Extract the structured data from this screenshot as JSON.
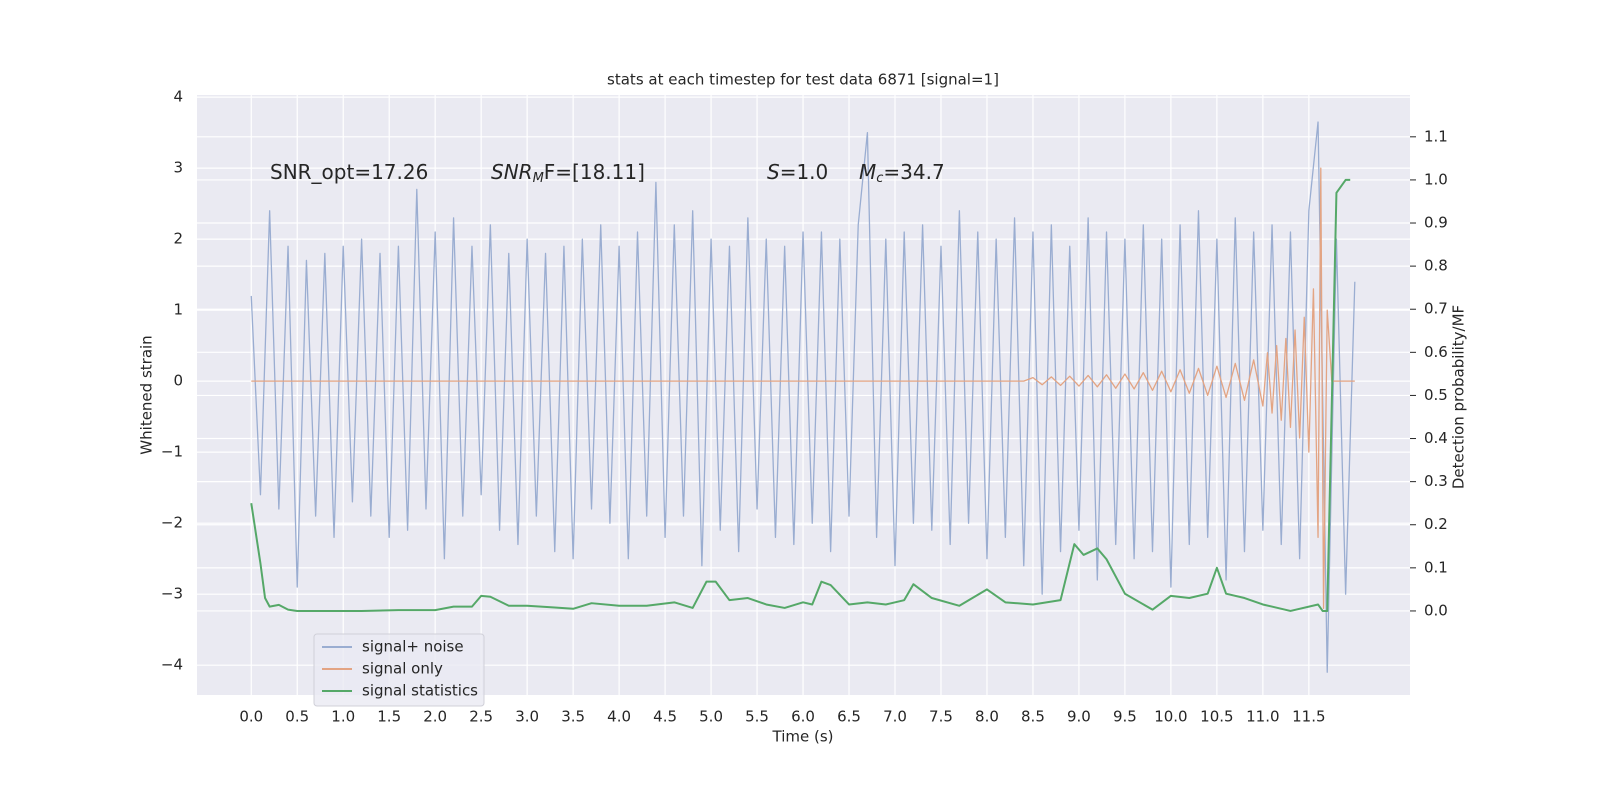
{
  "chart_data": {
    "type": "line",
    "title": "stats at each timestep for test data 6871 [signal=1]",
    "xlabel": "Time (s)",
    "ylabel": "Whitened strain",
    "y2label": "Detection probability/MF",
    "annotations": [
      {
        "text": "SNR_opt=17.26"
      },
      {
        "italic": "SNR",
        "sub": "M",
        "rest": "F=[18.11]"
      },
      {
        "italic": "S",
        "rest": "=1.0"
      },
      {
        "italic": "M",
        "sub": "c",
        "rest": "=34.7"
      }
    ],
    "xlim": [
      -0.59,
      12.6
    ],
    "ylim": [
      -4.42,
      4.03
    ],
    "y2lim": [
      -0.195,
      1.197
    ],
    "xticks": [
      {
        "value": 0,
        "label": "0.0"
      },
      {
        "value": 0.5,
        "label": "0.5"
      },
      {
        "value": 1,
        "label": "1.0"
      },
      {
        "value": 1.5,
        "label": "1.5"
      },
      {
        "value": 2,
        "label": "2.0"
      },
      {
        "value": 2.5,
        "label": "2.5"
      },
      {
        "value": 3,
        "label": "3.0"
      },
      {
        "value": 3.5,
        "label": "3.5"
      },
      {
        "value": 4,
        "label": "4.0"
      },
      {
        "value": 4.5,
        "label": "4.5"
      },
      {
        "value": 5,
        "label": "5.0"
      },
      {
        "value": 5.5,
        "label": "5.5"
      },
      {
        "value": 6,
        "label": "6.0"
      },
      {
        "value": 6.5,
        "label": "6.5"
      },
      {
        "value": 7,
        "label": "7.0"
      },
      {
        "value": 7.5,
        "label": "7.5"
      },
      {
        "value": 8,
        "label": "8.0"
      },
      {
        "value": 8.5,
        "label": "8.5"
      },
      {
        "value": 9,
        "label": "9.0"
      },
      {
        "value": 9.5,
        "label": "9.5"
      },
      {
        "value": 10,
        "label": "10.0"
      },
      {
        "value": 10.5,
        "label": "10.5"
      },
      {
        "value": 11,
        "label": "11.0"
      },
      {
        "value": 11.5,
        "label": "11.5"
      }
    ],
    "yticks": [
      {
        "value": -4,
        "label": "−4"
      },
      {
        "value": -3,
        "label": "−3"
      },
      {
        "value": -2,
        "label": "−2"
      },
      {
        "value": -1,
        "label": "−1"
      },
      0,
      1,
      2,
      3,
      4
    ],
    "y2ticks": [
      {
        "value": 0,
        "label": "0.0"
      },
      {
        "value": 0.1,
        "label": "0.1"
      },
      {
        "value": 0.2,
        "label": "0.2"
      },
      {
        "value": 0.3,
        "label": "0.3"
      },
      {
        "value": 0.4,
        "label": "0.4"
      },
      {
        "value": 0.5,
        "label": "0.5"
      },
      {
        "value": 0.6,
        "label": "0.6"
      },
      {
        "value": 0.7,
        "label": "0.7"
      },
      {
        "value": 0.8,
        "label": "0.8"
      },
      {
        "value": 0.9,
        "label": "0.9"
      },
      {
        "value": 1,
        "label": "1.0"
      },
      {
        "value": 1.1,
        "label": "1.1"
      }
    ],
    "grid": true,
    "legend": "lower left",
    "series": [
      {
        "name": "signal+ noise",
        "color": "#9aadd1",
        "x": [
          0,
          0.1,
          0.2,
          0.3,
          0.4,
          0.5,
          0.6,
          0.7,
          0.8,
          0.9,
          1,
          1.1,
          1.2,
          1.3,
          1.4,
          1.5,
          1.6,
          1.7,
          1.8,
          1.9,
          2,
          2.1,
          2.2,
          2.3,
          2.4,
          2.5,
          2.6,
          2.7,
          2.8,
          2.9,
          3,
          3.1,
          3.2,
          3.3,
          3.4,
          3.5,
          3.6,
          3.7,
          3.8,
          3.9,
          4,
          4.1,
          4.2,
          4.3,
          4.4,
          4.5,
          4.6,
          4.7,
          4.8,
          4.9,
          5,
          5.1,
          5.2,
          5.3,
          5.4,
          5.5,
          5.6,
          5.7,
          5.8,
          5.9,
          6,
          6.1,
          6.2,
          6.3,
          6.4,
          6.5,
          6.6,
          6.7,
          6.8,
          6.9,
          7,
          7.1,
          7.2,
          7.3,
          7.4,
          7.5,
          7.6,
          7.7,
          7.8,
          7.9,
          8,
          8.1,
          8.2,
          8.3,
          8.4,
          8.5,
          8.6,
          8.7,
          8.8,
          8.9,
          9,
          9.1,
          9.2,
          9.3,
          9.4,
          9.5,
          9.6,
          9.7,
          9.8,
          9.9,
          10,
          10.1,
          10.2,
          10.3,
          10.4,
          10.5,
          10.6,
          10.7,
          10.8,
          10.9,
          11,
          11.1,
          11.2,
          11.3,
          11.4,
          11.5,
          11.6,
          11.7,
          11.8,
          11.9,
          12
        ],
        "values": [
          1.2,
          -1.6,
          2.4,
          -1.8,
          1.9,
          -2.9,
          1.7,
          -1.9,
          1.8,
          -2.2,
          1.9,
          -1.7,
          2.0,
          -1.9,
          1.8,
          -2.2,
          1.9,
          -2.1,
          2.7,
          -1.8,
          2.1,
          -2.5,
          2.3,
          -1.9,
          1.9,
          -1.6,
          2.2,
          -2.1,
          1.8,
          -2.3,
          2.0,
          -1.9,
          1.8,
          -2.4,
          1.9,
          -2.5,
          2.0,
          -1.8,
          2.2,
          -2.0,
          1.9,
          -2.5,
          2.1,
          -1.9,
          2.8,
          -2.2,
          2.2,
          -1.9,
          2.4,
          -2.6,
          2.0,
          -2.1,
          1.9,
          -2.4,
          2.3,
          -1.8,
          2.0,
          -2.2,
          1.9,
          -2.3,
          2.1,
          -2.0,
          2.1,
          -2.4,
          2.0,
          -1.9,
          2.2,
          3.5,
          -2.2,
          2.0,
          -2.6,
          2.1,
          -2.0,
          2.2,
          -2.1,
          1.9,
          -2.3,
          2.4,
          -2.0,
          2.1,
          -2.5,
          2.0,
          -2.2,
          2.3,
          -2.6,
          2.1,
          -3.0,
          2.2,
          -2.4,
          1.9,
          -2.1,
          2.3,
          -2.8,
          2.1,
          -2.3,
          2.0,
          -2.5,
          2.2,
          -2.4,
          2.0,
          -2.9,
          2.2,
          -2.3,
          2.4,
          -2.2,
          2.0,
          -2.8,
          2.3,
          -2.4,
          2.1,
          -2.1,
          2.2,
          -2.3,
          2.1,
          -2.5,
          2.4,
          3.65,
          -4.1,
          2.0,
          -3.0,
          1.4
        ]
      },
      {
        "name": "signal only",
        "color": "#e3a483",
        "x": [
          0,
          8.4,
          8.5,
          8.6,
          8.7,
          8.8,
          8.9,
          9,
          9.1,
          9.2,
          9.3,
          9.4,
          9.5,
          9.6,
          9.7,
          9.8,
          9.9,
          10,
          10.1,
          10.2,
          10.3,
          10.4,
          10.5,
          10.6,
          10.7,
          10.8,
          10.9,
          11,
          11.05,
          11.1,
          11.15,
          11.2,
          11.25,
          11.3,
          11.35,
          11.4,
          11.45,
          11.5,
          11.55,
          11.6,
          11.63,
          11.66,
          11.7,
          11.75,
          12
        ],
        "values": [
          0,
          0,
          0.05,
          -0.05,
          0.06,
          -0.06,
          0.07,
          -0.07,
          0.08,
          -0.08,
          0.09,
          -0.1,
          0.1,
          -0.11,
          0.12,
          -0.13,
          0.14,
          -0.15,
          0.16,
          -0.17,
          0.18,
          -0.2,
          0.21,
          -0.23,
          0.25,
          -0.27,
          0.3,
          -0.35,
          0.4,
          -0.45,
          0.5,
          -0.55,
          0.6,
          -0.65,
          0.72,
          -0.8,
          0.9,
          -1.0,
          1.3,
          -2.2,
          3.0,
          -3.2,
          1.0,
          0,
          0
        ]
      },
      {
        "name": "signal statistics",
        "color": "#55a868",
        "axis": "y2",
        "x": [
          0,
          0.1,
          0.15,
          0.2,
          0.3,
          0.4,
          0.5,
          0.8,
          1.2,
          1.6,
          1.8,
          2.0,
          2.2,
          2.4,
          2.5,
          2.6,
          2.8,
          3.0,
          3.3,
          3.5,
          3.7,
          4.0,
          4.3,
          4.6,
          4.8,
          4.95,
          5.05,
          5.2,
          5.4,
          5.6,
          5.8,
          6.0,
          6.1,
          6.2,
          6.3,
          6.5,
          6.7,
          6.9,
          7.1,
          7.2,
          7.4,
          7.7,
          8.0,
          8.2,
          8.5,
          8.8,
          8.95,
          9.05,
          9.2,
          9.3,
          9.5,
          9.8,
          10.0,
          10.2,
          10.4,
          10.5,
          10.6,
          10.8,
          11.0,
          11.3,
          11.6,
          11.65,
          11.7,
          11.8,
          11.9,
          11.95
        ],
        "values": [
          0.25,
          0.11,
          0.03,
          0.01,
          0.014,
          0.003,
          0.0,
          0.0,
          0.0,
          0.002,
          0.002,
          0.002,
          0.01,
          0.01,
          0.035,
          0.033,
          0.012,
          0.012,
          0.008,
          0.005,
          0.018,
          0.012,
          0.012,
          0.02,
          0.007,
          0.068,
          0.068,
          0.025,
          0.03,
          0.015,
          0.007,
          0.02,
          0.015,
          0.068,
          0.06,
          0.015,
          0.02,
          0.015,
          0.025,
          0.062,
          0.03,
          0.012,
          0.05,
          0.02,
          0.015,
          0.025,
          0.155,
          0.13,
          0.145,
          0.12,
          0.04,
          0.003,
          0.035,
          0.03,
          0.04,
          0.1,
          0.04,
          0.03,
          0.015,
          0.0,
          0.015,
          0.0,
          0.0,
          0.97,
          1.0,
          1.0
        ]
      }
    ]
  }
}
